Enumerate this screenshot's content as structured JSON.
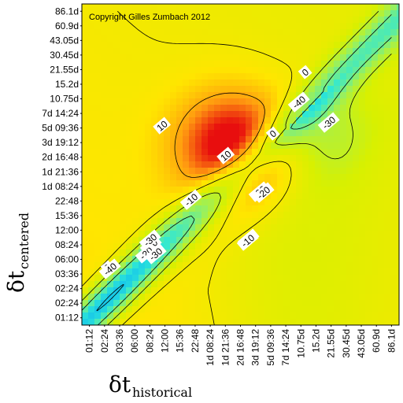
{
  "chart_data": {
    "type": "heatmap",
    "subtype": "contour",
    "annotation": "Copyright Gilles Zumbach 2012",
    "x_axis": {
      "symbol": "δt",
      "subscript": "historical",
      "tick_labels": [
        "01:12",
        "02:24",
        "03:36",
        "06:00",
        "08:24",
        "12:00",
        "15:36",
        "22:48",
        "1d 08:24",
        "1d 21:36",
        "2d 16:48",
        "3d 19:12",
        "5d 09:36",
        "7d 14:24",
        "10.75d",
        "15.2d",
        "21.55d",
        "30.45d",
        "43.05d",
        "60.9d",
        "86.1d"
      ]
    },
    "y_axis": {
      "symbol": "δt",
      "subscript": "centered",
      "tick_labels": [
        "01:12",
        "02:24",
        "02:24",
        "03:36",
        "06:00",
        "08:24",
        "12:00",
        "15:36",
        "22:48",
        "1d 08:24",
        "1d 21:36",
        "2d 16:48",
        "3d 19:12",
        "5d 09:36",
        "7d 14:24",
        "10.75d",
        "15.2d",
        "21.55d",
        "30.45d",
        "43.05d",
        "60.9d",
        "86.1d"
      ]
    },
    "contour_labels": [
      "10",
      "10",
      "0",
      "-10",
      "-20",
      "-30",
      "-40",
      "0",
      "-10",
      "-20",
      "-30",
      "-10",
      "0",
      "-30",
      "-40",
      "-20",
      "-10"
    ],
    "contour_levels": [
      -40,
      -30,
      -20,
      -10,
      0,
      10
    ],
    "value_range": [
      -45,
      22
    ],
    "colormap": [
      "#0a1fd6",
      "#00a3ff",
      "#2ee8d6",
      "#9cf05a",
      "#d8f000",
      "#ffe600",
      "#ff9a10",
      "#e80e0e"
    ],
    "peak": {
      "x_index": 9.5,
      "y_index": 11.8,
      "value": 22
    },
    "trough": {
      "x_index": 1.0,
      "y_index": 1.0,
      "value": -45
    }
  }
}
